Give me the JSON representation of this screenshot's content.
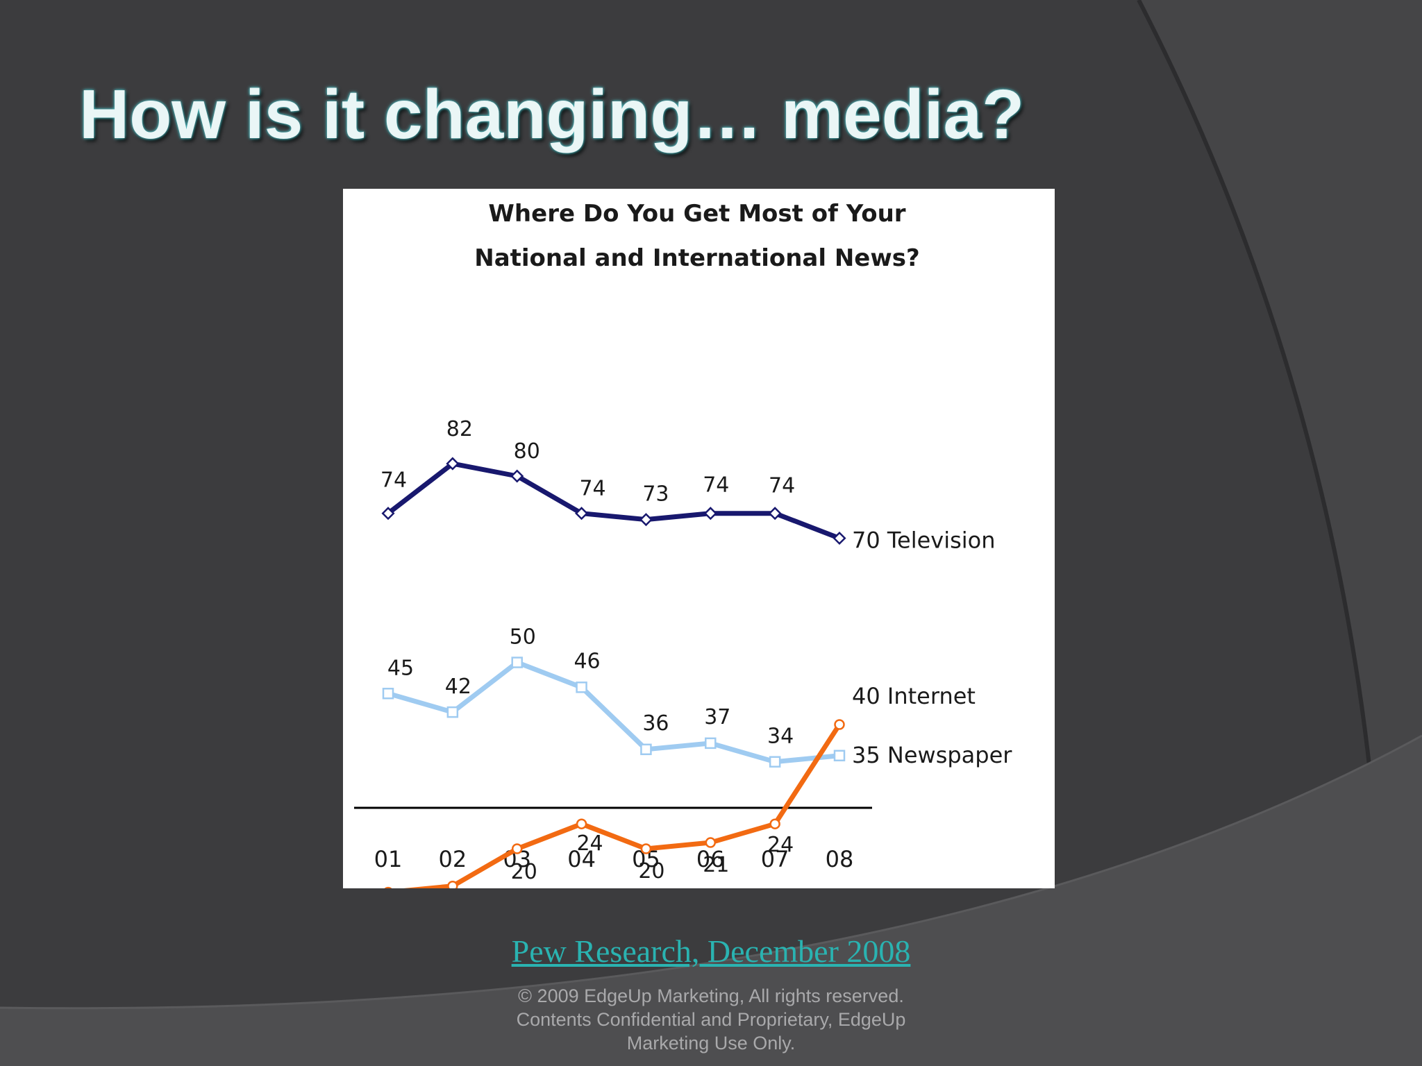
{
  "slide": {
    "title": "How is it changing… media?",
    "source_link": "Pew Research, December 2008",
    "footer_lines": [
      "© 2009 EdgeUp Marketing, All rights reserved.",
      "Contents Confidential and Proprietary, EdgeUp",
      "Marketing Use Only."
    ]
  },
  "colors": {
    "background": "#3c3c3e",
    "title_glow": "#4fb8bd",
    "link": "#2ab3b1",
    "television": "#18186e",
    "newspaper": "#9fcbf1",
    "internet": "#f26a12"
  },
  "chart_data": {
    "type": "line",
    "title_lines": [
      "Where Do You Get Most of Your",
      "National and International News?"
    ],
    "categories": [
      "01",
      "02",
      "03",
      "04",
      "05",
      "06",
      "07",
      "08"
    ],
    "series": [
      {
        "name": "Television",
        "values": [
          74,
          82,
          80,
          74,
          73,
          74,
          74,
          70
        ],
        "end_label": "70 Television",
        "color": "#18186e",
        "marker": "diamond"
      },
      {
        "name": "Newspaper",
        "values": [
          45,
          42,
          50,
          46,
          36,
          37,
          34,
          35
        ],
        "end_label": "35 Newspaper",
        "color": "#9fcbf1",
        "marker": "square"
      },
      {
        "name": "Internet",
        "values": [
          13,
          14,
          20,
          24,
          20,
          21,
          24,
          40
        ],
        "end_label": "40 Internet",
        "color": "#f26a12",
        "marker": "circle"
      }
    ],
    "ylim": [
      0,
      90
    ],
    "grid": false,
    "legend": "none"
  }
}
